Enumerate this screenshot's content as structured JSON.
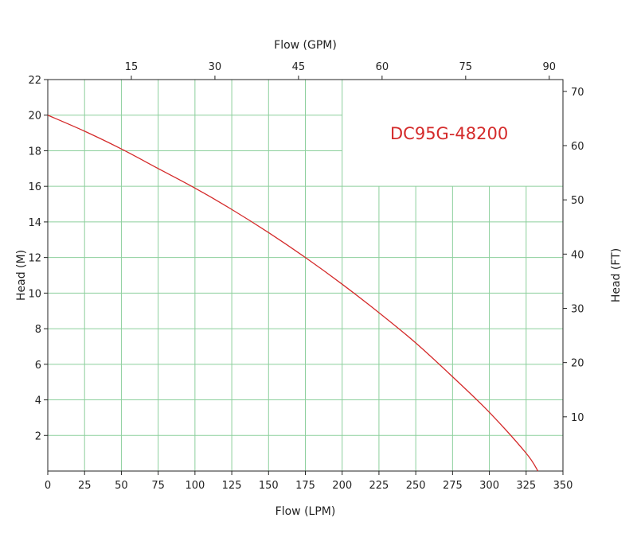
{
  "chart_data": {
    "type": "line",
    "annotation": "DC95G-48200",
    "colors": {
      "curve": "#d42a2a",
      "annotation": "#d42a2a",
      "grid": "#8ccf9c"
    },
    "x_bottom": {
      "label": "Flow (LPM)",
      "range": [
        0,
        350
      ],
      "ticks": [
        0,
        25,
        50,
        75,
        100,
        125,
        150,
        175,
        200,
        225,
        250,
        275,
        300,
        325,
        350
      ]
    },
    "x_top": {
      "label": "Flow (GPM)",
      "ticks": [
        15,
        30,
        45,
        60,
        75,
        90
      ]
    },
    "y_left": {
      "label": "Head (M)",
      "range": [
        0,
        22
      ],
      "ticks": [
        2,
        4,
        6,
        8,
        10,
        12,
        14,
        16,
        18,
        20,
        22
      ]
    },
    "y_right": {
      "label": "Head (FT)",
      "ticks": [
        10,
        20,
        30,
        40,
        50,
        60,
        70
      ]
    },
    "grid": true,
    "series": [
      {
        "x": [
          0,
          25,
          50,
          75,
          100,
          125,
          150,
          175,
          200,
          225,
          250,
          275,
          300,
          325,
          333
        ],
        "y": [
          20,
          19.1,
          18.1,
          17.0,
          15.9,
          14.7,
          13.4,
          12.0,
          10.5,
          8.9,
          7.2,
          5.3,
          3.3,
          1.0,
          0
        ]
      }
    ]
  }
}
